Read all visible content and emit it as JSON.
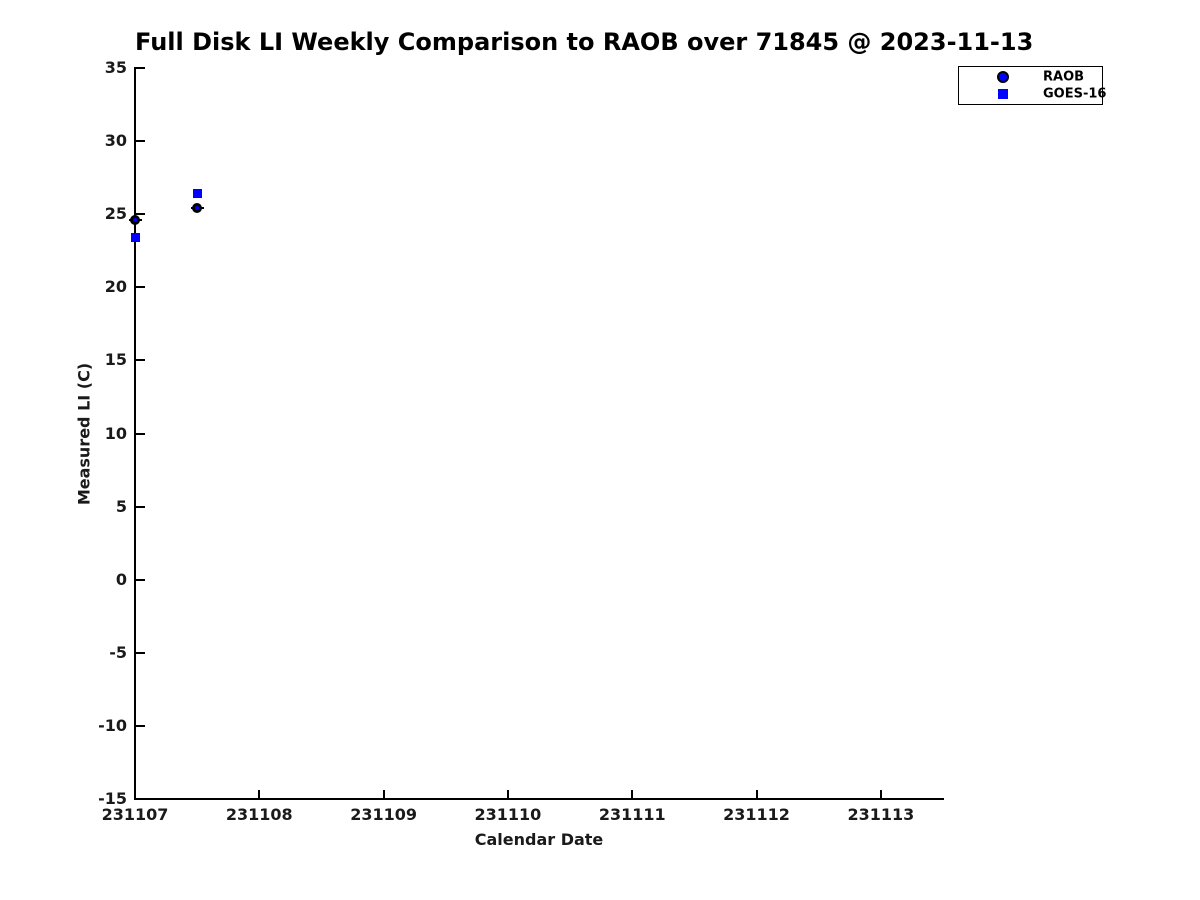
{
  "chart_data": {
    "type": "scatter",
    "title": "Full Disk LI Weekly Comparison to RAOB over 71845 @ 2023-11-13",
    "xlabel": "Calendar Date",
    "ylabel": "Measured LI (C)",
    "xlim": [
      231107,
      231113.5
    ],
    "ylim": [
      -15,
      35
    ],
    "x_ticks": [
      231107,
      231108,
      231109,
      231110,
      231111,
      231112,
      231113
    ],
    "y_ticks": [
      35,
      30,
      25,
      20,
      15,
      10,
      5,
      0,
      -5,
      -10,
      -15
    ],
    "grid": false,
    "legend_position": "top-right",
    "series": [
      {
        "name": "RAOB",
        "marker": "circle",
        "marker_face_color": "#0000ff",
        "marker_edge_color": "#000000",
        "points": [
          [
            231107.0,
            24.6
          ],
          [
            231107.5,
            25.4
          ]
        ]
      },
      {
        "name": "GOES-16",
        "marker": "square",
        "marker_face_color": "#0000ff",
        "marker_edge_color": "#0000ff",
        "points": [
          [
            231107.0,
            23.4
          ],
          [
            231107.5,
            26.4
          ]
        ]
      }
    ],
    "colors": {
      "axis": "#000000",
      "text": "#1a1a1a",
      "marker_blue": "#0000ff",
      "marker_black": "#000000",
      "background": "#ffffff"
    }
  }
}
